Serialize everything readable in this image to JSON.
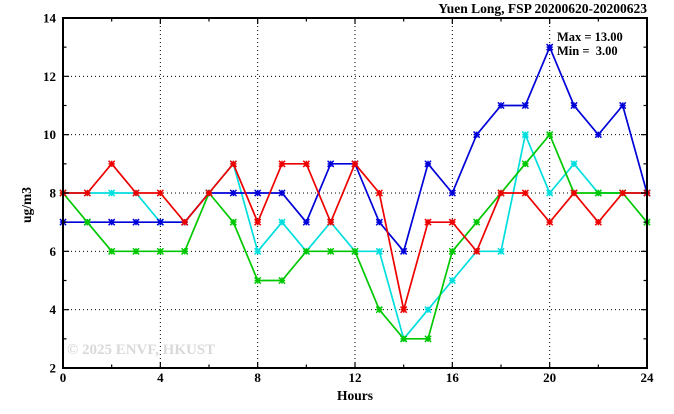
{
  "title": "Yuen Long, FSP 20200620-20200623",
  "annotation": {
    "max_label": "Max = 13.00",
    "min_label": "Min =  3.00"
  },
  "watermark": "© 2025 ENVF, HKUST",
  "chart_data": {
    "type": "line",
    "title": "Yuen Long, FSP 20200620-20200623",
    "xlabel": "Hours",
    "ylabel": "ug/m3",
    "xlim": [
      0,
      24
    ],
    "ylim": [
      2,
      14
    ],
    "x_major_ticks": [
      0,
      4,
      8,
      12,
      16,
      20,
      24
    ],
    "x_minor_step": 2,
    "y_major_ticks": [
      2,
      4,
      6,
      8,
      10,
      12,
      14
    ],
    "y_minor_step": 1,
    "grid": "dotted-at-major-ticks",
    "legend": "none",
    "stats": {
      "max": 13.0,
      "min": 3.0
    },
    "x": [
      0,
      1,
      2,
      3,
      4,
      5,
      6,
      7,
      8,
      9,
      10,
      11,
      12,
      13,
      14,
      15,
      16,
      17,
      18,
      19,
      20,
      21,
      22,
      23,
      24
    ],
    "series": [
      {
        "name": "cyan-line",
        "color": "#00dede",
        "values": [
          8,
          8,
          8,
          8,
          7,
          7,
          8,
          9,
          6,
          7,
          6,
          7,
          6,
          6,
          3,
          4,
          5,
          6,
          6,
          10,
          8,
          9,
          8,
          8,
          8
        ]
      },
      {
        "name": "blue-line",
        "color": "#0000d8",
        "values": [
          7,
          7,
          7,
          7,
          7,
          7,
          8,
          8,
          8,
          8,
          7,
          9,
          9,
          7,
          6,
          9,
          8,
          10,
          11,
          11,
          13,
          11,
          10,
          11,
          8
        ]
      },
      {
        "name": "green-line",
        "color": "#00c800",
        "values": [
          8,
          7,
          6,
          6,
          6,
          6,
          8,
          7,
          5,
          5,
          6,
          6,
          6,
          4,
          3,
          3,
          6,
          7,
          8,
          9,
          10,
          8,
          8,
          8,
          7
        ]
      },
      {
        "name": "red-line",
        "color": "#ee0000",
        "values": [
          8,
          8,
          9,
          8,
          8,
          7,
          8,
          9,
          7,
          9,
          9,
          7,
          9,
          8,
          4,
          7,
          7,
          6,
          8,
          8,
          7,
          8,
          7,
          8,
          8
        ]
      }
    ]
  }
}
